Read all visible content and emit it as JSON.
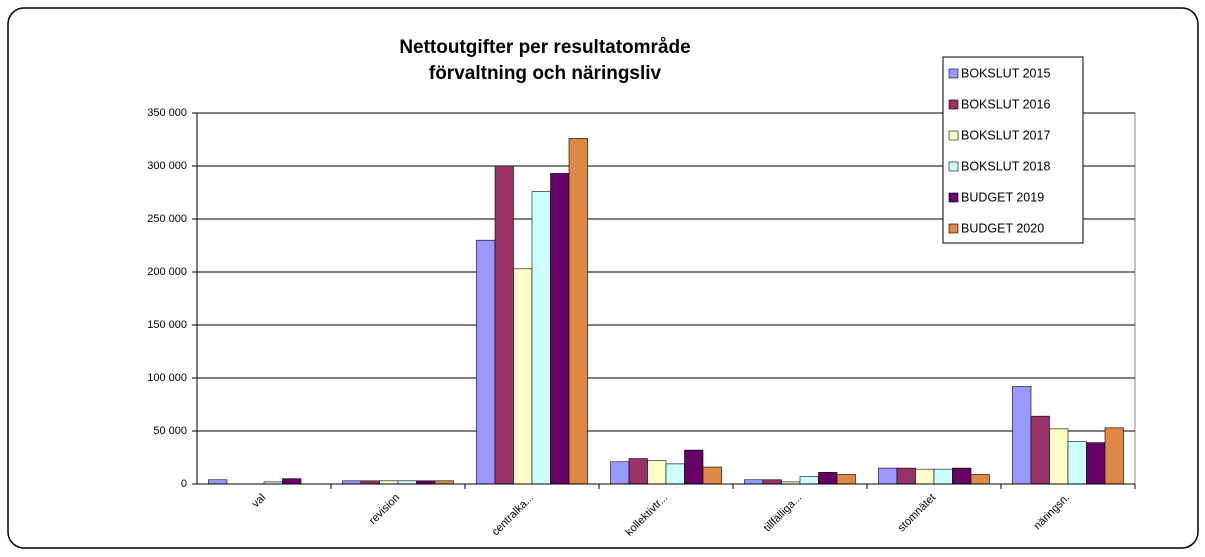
{
  "chart_data": {
    "type": "bar",
    "title": [
      "Nettoutgifter per resultatområde",
      "förvaltning och näringsliv"
    ],
    "categories": [
      "val",
      "revision",
      "centralka...",
      "kollektivtr...",
      "tillfälliga...",
      "stomnätet",
      "näringsn."
    ],
    "series": [
      {
        "name": "BOKSLUT 2015",
        "color": "#9999ff",
        "values": [
          4000,
          3000,
          230000,
          21000,
          4000,
          15000,
          92000
        ]
      },
      {
        "name": "BOKSLUT 2016",
        "color": "#993366",
        "values": [
          0,
          3000,
          300000,
          24000,
          4000,
          15000,
          64000
        ]
      },
      {
        "name": "BOKSLUT 2017",
        "color": "#ffffcc",
        "values": [
          0,
          3000,
          203000,
          22000,
          2000,
          14000,
          52000
        ]
      },
      {
        "name": "BOKSLUT 2018",
        "color": "#ccffff",
        "values": [
          2000,
          3000,
          276000,
          19000,
          7000,
          14000,
          40000
        ]
      },
      {
        "name": "BUDGET 2019",
        "color": "#660066",
        "values": [
          5000,
          3000,
          293000,
          32000,
          11000,
          15000,
          39000
        ]
      },
      {
        "name": "BUDGET 2020",
        "color": "#dd8844",
        "values": [
          0,
          3000,
          326000,
          16000,
          9000,
          9000,
          53000
        ]
      }
    ],
    "ylim": [
      0,
      350000
    ],
    "yticks": [
      0,
      {
        "value": 50000,
        "label": "50 000"
      },
      {
        "value": 100000,
        "label": "100 000"
      },
      {
        "value": 150000,
        "label": "150 000"
      },
      {
        "value": 200000,
        "label": "200 000"
      },
      {
        "value": 250000,
        "label": "250 000"
      },
      {
        "value": 300000,
        "label": "300 000"
      },
      {
        "value": 350000,
        "label": "350 000"
      }
    ],
    "grid": true,
    "legend": "upper right"
  }
}
